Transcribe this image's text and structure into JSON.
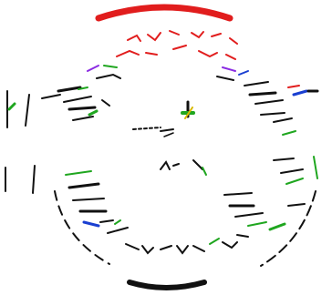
{
  "image": {
    "background": "#ffffff",
    "colors": {
      "ink": "#111111",
      "red": "#e11d1d",
      "green": "#1fa61f",
      "blue": "#1a3fd1",
      "purple": "#8a2be2",
      "yellow": "#d8b800"
    }
  }
}
